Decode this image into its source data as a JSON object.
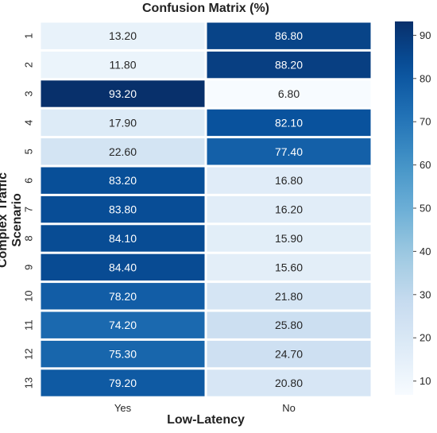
{
  "chart_data": {
    "type": "heatmap",
    "title": "Confusion Matrix (%)",
    "xlabel": "Low-Latency",
    "ylabel": "Complex Traffic Scenario",
    "columns": [
      "Yes",
      "No"
    ],
    "rows": [
      "1",
      "2",
      "3",
      "4",
      "5",
      "6",
      "7",
      "8",
      "9",
      "10",
      "11",
      "12",
      "13"
    ],
    "values": [
      [
        13.2,
        86.8
      ],
      [
        11.8,
        88.2
      ],
      [
        93.2,
        6.8
      ],
      [
        17.9,
        82.1
      ],
      [
        22.6,
        77.4
      ],
      [
        83.2,
        16.8
      ],
      [
        83.8,
        16.2
      ],
      [
        84.1,
        15.9
      ],
      [
        84.4,
        15.6
      ],
      [
        78.2,
        21.8
      ],
      [
        74.2,
        25.8
      ],
      [
        75.3,
        24.7
      ],
      [
        79.2,
        20.8
      ]
    ],
    "value_labels": [
      [
        "13.20",
        "86.80"
      ],
      [
        "11.80",
        "88.20"
      ],
      [
        "93.20",
        "6.80"
      ],
      [
        "17.90",
        "82.10"
      ],
      [
        "22.60",
        "77.40"
      ],
      [
        "83.20",
        "16.80"
      ],
      [
        "83.80",
        "16.20"
      ],
      [
        "84.10",
        "15.90"
      ],
      [
        "84.40",
        "15.60"
      ],
      [
        "78.20",
        "21.80"
      ],
      [
        "74.20",
        "25.80"
      ],
      [
        "75.30",
        "24.70"
      ],
      [
        "79.20",
        "20.80"
      ]
    ],
    "colormap": "Blues",
    "colorbar": {
      "range": [
        6.8,
        93.2
      ],
      "ticks": [
        10,
        20,
        30,
        40,
        50,
        60,
        70,
        80,
        90
      ]
    },
    "colors": {
      "low": "#f7fbff",
      "high": "#08306b"
    }
  }
}
